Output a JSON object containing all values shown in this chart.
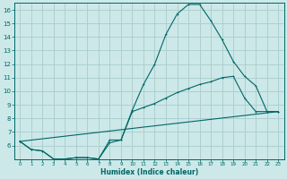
{
  "xlabel": "Humidex (Indice chaleur)",
  "bg_color": "#cce8e8",
  "grid_color": "#aacccc",
  "line_color": "#006666",
  "xlim": [
    -0.5,
    23.5
  ],
  "ylim": [
    5,
    16.5
  ],
  "xticks": [
    0,
    1,
    2,
    3,
    4,
    5,
    6,
    7,
    8,
    9,
    10,
    11,
    12,
    13,
    14,
    15,
    16,
    17,
    18,
    19,
    20,
    21,
    22,
    23
  ],
  "yticks": [
    6,
    7,
    8,
    9,
    10,
    11,
    12,
    13,
    14,
    15,
    16
  ],
  "line1_x": [
    0,
    1,
    2,
    3,
    4,
    5,
    6,
    7,
    8,
    9,
    10,
    11,
    12,
    13,
    14,
    15,
    16,
    17,
    18,
    19,
    20,
    21,
    22,
    23
  ],
  "line1_y": [
    6.3,
    5.7,
    5.6,
    5.0,
    5.0,
    5.1,
    5.1,
    5.0,
    6.4,
    6.4,
    8.6,
    10.5,
    12.0,
    14.2,
    15.7,
    16.4,
    16.4,
    15.2,
    13.8,
    12.2,
    11.1,
    10.4,
    8.5,
    8.5
  ],
  "line2_x": [
    0,
    1,
    2,
    3,
    4,
    5,
    6,
    7,
    8,
    9,
    10,
    11,
    12,
    13,
    14,
    15,
    16,
    17,
    18,
    19,
    20,
    21,
    22,
    23
  ],
  "line2_y": [
    6.3,
    5.7,
    5.6,
    5.0,
    5.0,
    5.1,
    5.1,
    5.0,
    6.2,
    6.4,
    8.5,
    8.8,
    9.1,
    9.5,
    9.9,
    10.2,
    10.5,
    10.7,
    11.0,
    11.1,
    9.5,
    8.5,
    8.5,
    8.5
  ],
  "line3_x": [
    0,
    23
  ],
  "line3_y": [
    6.3,
    8.5
  ],
  "linewidth": 0.8,
  "markersize": 2.0,
  "xlabel_fontsize": 5.5,
  "tick_fontsize_x": 4.0,
  "tick_fontsize_y": 5.0
}
